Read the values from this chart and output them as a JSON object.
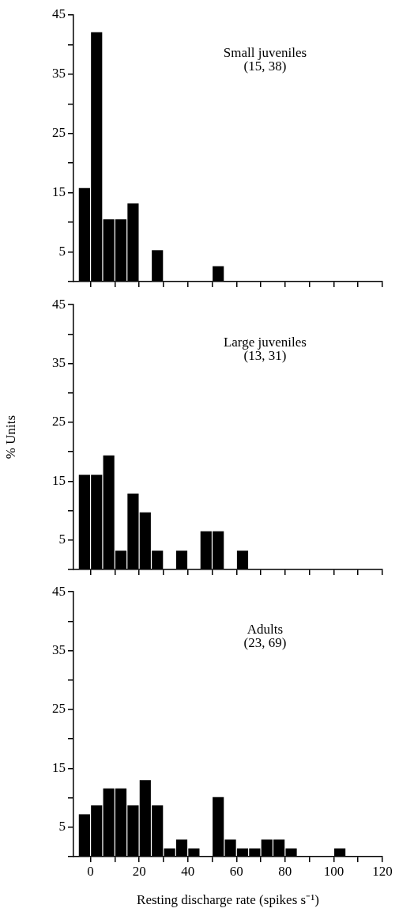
{
  "chart_data": [
    {
      "type": "histogram",
      "annotations": [
        "Small juveniles",
        "(15, 38)"
      ],
      "bins": [
        -5,
        0,
        5,
        10,
        15,
        20,
        25,
        30,
        35,
        40,
        45,
        50,
        55,
        60,
        65,
        70,
        75,
        80,
        85,
        90,
        95,
        100,
        105,
        110,
        115,
        120
      ],
      "values": [
        15.8,
        42.1,
        10.5,
        10.5,
        13.2,
        0,
        5.3,
        0,
        0,
        0,
        0,
        2.6,
        0,
        0,
        0,
        0,
        0,
        0,
        0,
        0,
        0,
        0,
        0,
        0,
        0
      ],
      "color": "#000000",
      "xlim": [
        -7,
        120
      ],
      "xticks": [
        0,
        10,
        20,
        30,
        40,
        50,
        60,
        70,
        80,
        90,
        100,
        110,
        120
      ],
      "ylim": [
        0,
        45
      ],
      "yticks": [
        {
          "value": 0,
          "label": null
        },
        5,
        {
          "value": 10,
          "label": null
        },
        15,
        {
          "value": 20,
          "label": null
        },
        25,
        {
          "value": 30,
          "label": null
        },
        35,
        {
          "value": 40,
          "label": null
        },
        45
      ],
      "tick_labels": "y",
      "grid": false,
      "legend": false
    },
    {
      "type": "histogram",
      "ylabel": "% Units",
      "annotations": [
        "Large juveniles",
        "(13, 31)"
      ],
      "bins": [
        -5,
        0,
        5,
        10,
        15,
        20,
        25,
        30,
        35,
        40,
        45,
        50,
        55,
        60,
        65,
        70,
        75,
        80,
        85,
        90,
        95,
        100,
        105,
        110,
        115,
        120
      ],
      "values": [
        16.1,
        16.1,
        19.4,
        3.2,
        12.9,
        9.7,
        3.2,
        0,
        3.2,
        0,
        6.5,
        6.5,
        0,
        3.2,
        0,
        0,
        0,
        0,
        0,
        0,
        0,
        0,
        0,
        0,
        0
      ],
      "color": "#000000",
      "xlim": [
        -7,
        120
      ],
      "xticks": [
        0,
        10,
        20,
        30,
        40,
        50,
        60,
        70,
        80,
        90,
        100,
        110,
        120
      ],
      "ylim": [
        0,
        45
      ],
      "yticks": [
        {
          "value": 0,
          "label": null
        },
        5,
        {
          "value": 10,
          "label": null
        },
        15,
        {
          "value": 20,
          "label": null
        },
        25,
        {
          "value": 30,
          "label": null
        },
        35,
        {
          "value": 40,
          "label": null
        },
        45
      ],
      "tick_labels": "y",
      "grid": false,
      "legend": false
    },
    {
      "type": "histogram",
      "xlabel": "Resting discharge rate (spikes s⁻¹)",
      "annotations": [
        "Adults",
        "(23, 69)"
      ],
      "bins": [
        -5,
        0,
        5,
        10,
        15,
        20,
        25,
        30,
        35,
        40,
        45,
        50,
        55,
        60,
        65,
        70,
        75,
        80,
        85,
        90,
        95,
        100,
        105,
        110,
        115,
        120
      ],
      "values": [
        7.2,
        8.7,
        11.6,
        11.6,
        8.7,
        13.0,
        8.7,
        1.4,
        2.9,
        1.4,
        0,
        10.1,
        2.9,
        1.4,
        1.4,
        2.9,
        2.9,
        1.4,
        0,
        0,
        0,
        1.4,
        0,
        0,
        0
      ],
      "color": "#000000",
      "xlim": [
        -7,
        120
      ],
      "xticks": [
        {
          "value": 0,
          "label": "0"
        },
        {
          "value": 10,
          "label": null
        },
        {
          "value": 20,
          "label": "20"
        },
        {
          "value": 30,
          "label": null
        },
        {
          "value": 40,
          "label": "40"
        },
        {
          "value": 50,
          "label": null
        },
        {
          "value": 60,
          "label": "60"
        },
        {
          "value": 70,
          "label": null
        },
        {
          "value": 80,
          "label": "80"
        },
        {
          "value": 90,
          "label": null
        },
        {
          "value": 100,
          "label": "100"
        },
        {
          "value": 110,
          "label": null
        },
        {
          "value": 120,
          "label": "120"
        }
      ],
      "ylim": [
        0,
        45
      ],
      "yticks": [
        {
          "value": 0,
          "label": null
        },
        5,
        {
          "value": 10,
          "label": null
        },
        15,
        {
          "value": 20,
          "label": null
        },
        25,
        {
          "value": 30,
          "label": null
        },
        35,
        {
          "value": 40,
          "label": null
        },
        45
      ],
      "grid": false,
      "legend": false
    }
  ]
}
